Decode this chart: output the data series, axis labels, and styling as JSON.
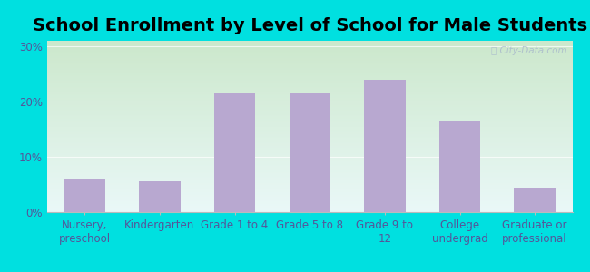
{
  "title": "School Enrollment by Level of School for Male Students",
  "categories": [
    "Nursery,\npreschool",
    "Kindergarten",
    "Grade 1 to 4",
    "Grade 5 to 8",
    "Grade 9 to\n12",
    "College\nundergrad",
    "Graduate or\nprofessional"
  ],
  "values": [
    6.0,
    5.5,
    21.5,
    21.5,
    24.0,
    16.5,
    4.5
  ],
  "bar_color": "#b8a8d0",
  "background_outer": "#00e0e0",
  "background_inner_topleft": "#d8f0d8",
  "background_inner_bottomright": "#e8f8f8",
  "yticks": [
    0,
    10,
    20,
    30
  ],
  "ylim": [
    0,
    31
  ],
  "title_fontsize": 14,
  "tick_fontsize": 8.5,
  "axis_label_color": "#555599",
  "watermark": "ⓘ City-Data.com",
  "watermark_color": "#aabbcc"
}
